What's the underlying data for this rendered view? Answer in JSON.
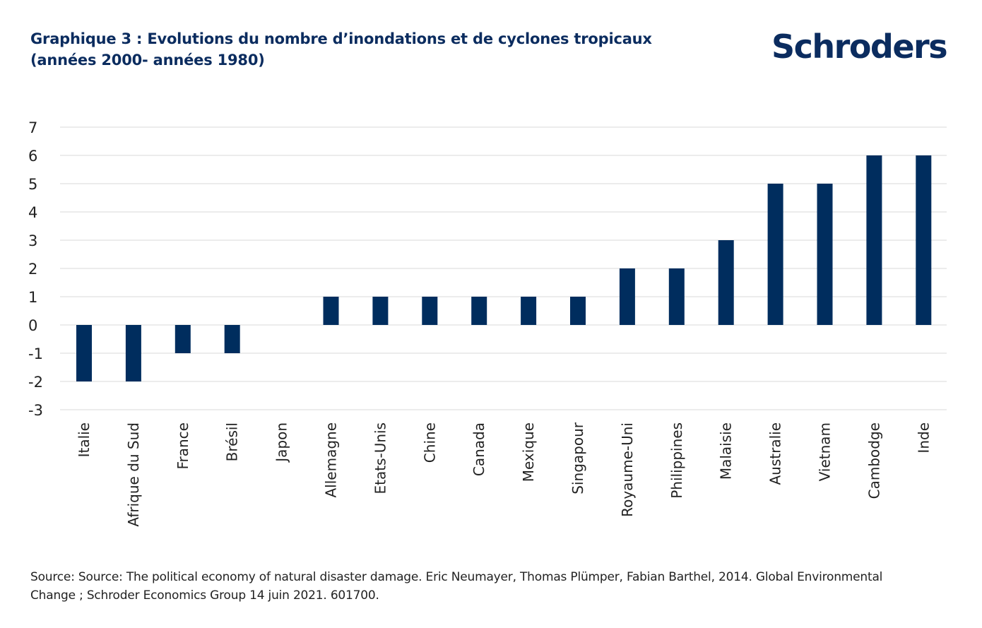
{
  "title_line1": "Graphique 3 : Evolutions du nombre d’inondations et de cyclones tropicaux",
  "title_line2": "(années 2000- années 1980)",
  "logo_text": "Schroders",
  "source_line1": "Source: Source: The political economy of natural disaster damage. Eric Neumayer, Thomas Plümper, Fabian Barthel, 2014. Global Environmental",
  "source_line2": "Change ; Schroder Economics Group 14 juin 2021. 601700.",
  "colors": {
    "bar": "#002d5e",
    "title": "#0b2c5f",
    "grid": "#d9d9d9"
  },
  "chart_data": {
    "type": "bar",
    "title": "Graphique 3 : Evolutions du nombre d’inondations et de cyclones tropicaux (années 2000- années 1980)",
    "xlabel": "",
    "ylabel": "",
    "ylim": [
      -3,
      7
    ],
    "yticks": [
      7,
      6,
      5,
      4,
      3,
      2,
      1,
      0,
      -1,
      -2,
      -3
    ],
    "grid": true,
    "categories": [
      "Italie",
      "Afrique du Sud",
      "France",
      "Brésil",
      "Japon",
      "Allemagne",
      "Etats-Unis",
      "Chine",
      "Canada",
      "Mexique",
      "Singapour",
      "Royaume-Uni",
      "Philippines",
      "Malaisie",
      "Australie",
      "Vietnam",
      "Cambodge",
      "Inde"
    ],
    "values": [
      -2,
      -2,
      -1,
      -1,
      0,
      1,
      1,
      1,
      1,
      1,
      1,
      2,
      2,
      3,
      5,
      5,
      6,
      6
    ]
  }
}
